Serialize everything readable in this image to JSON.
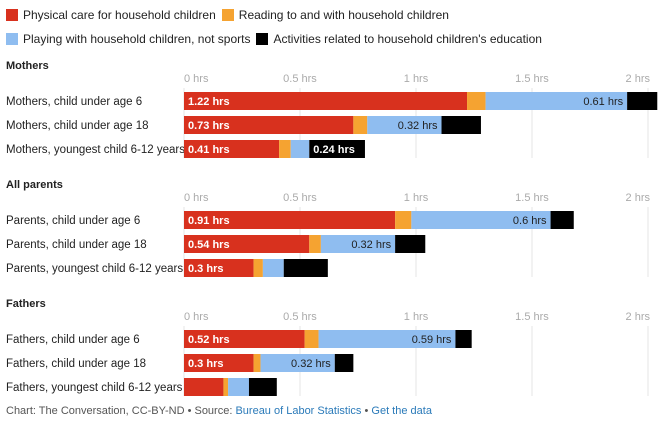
{
  "chart_data": {
    "type": "bar",
    "stacked": true,
    "orientation": "horizontal",
    "xlim": [
      0,
      2
    ],
    "x_ticks": [
      "0 hrs",
      "0.5 hrs",
      "1 hrs",
      "1.5 hrs",
      "2 hrs"
    ],
    "legend": [
      {
        "name": "Physical care for household children",
        "color": "#d8311e"
      },
      {
        "name": "Reading to and with household children",
        "color": "#f5a331"
      },
      {
        "name": "Playing with household children, not sports",
        "color": "#8fbdf0"
      },
      {
        "name": "Activities related to household children's education",
        "color": "#000000"
      }
    ],
    "groups": [
      {
        "title": "Mothers",
        "rows": [
          {
            "label": "Mothers, child under age 6",
            "values": [
              1.22,
              0.08,
              0.61,
              0.13
            ],
            "labels": [
              "1.22 hrs",
              "",
              "0.61 hrs",
              ""
            ]
          },
          {
            "label": "Mothers, child under age 18",
            "values": [
              0.73,
              0.06,
              0.32,
              0.17
            ],
            "labels": [
              "0.73 hrs",
              "",
              "0.32 hrs",
              ""
            ]
          },
          {
            "label": "Mothers, youngest child 6-12 years",
            "values": [
              0.41,
              0.05,
              0.08,
              0.24
            ],
            "labels": [
              "0.41 hrs",
              "",
              "",
              "0.24 hrs"
            ]
          }
        ]
      },
      {
        "title": "All parents",
        "rows": [
          {
            "label": "Parents, child under age 6",
            "values": [
              0.91,
              0.07,
              0.6,
              0.1
            ],
            "labels": [
              "0.91 hrs",
              "",
              "0.6 hrs",
              ""
            ]
          },
          {
            "label": "Parents, child under age 18",
            "values": [
              0.54,
              0.05,
              0.32,
              0.13
            ],
            "labels": [
              "0.54 hrs",
              "",
              "0.32 hrs",
              ""
            ]
          },
          {
            "label": "Parents, youngest child 6-12 years",
            "values": [
              0.3,
              0.04,
              0.09,
              0.19
            ],
            "labels": [
              "0.3 hrs",
              "",
              "",
              ""
            ]
          }
        ]
      },
      {
        "title": "Fathers",
        "rows": [
          {
            "label": "Fathers, child under age 6",
            "values": [
              0.52,
              0.06,
              0.59,
              0.07
            ],
            "labels": [
              "0.52 hrs",
              "",
              "0.59 hrs",
              ""
            ]
          },
          {
            "label": "Fathers, child under age 18",
            "values": [
              0.3,
              0.03,
              0.32,
              0.08
            ],
            "labels": [
              "0.3 hrs",
              "",
              "0.32 hrs",
              ""
            ]
          },
          {
            "label": "Fathers, youngest child 6-12 years",
            "values": [
              0.17,
              0.02,
              0.09,
              0.12
            ],
            "labels": [
              "",
              "",
              "",
              ""
            ]
          }
        ]
      }
    ]
  },
  "footer": {
    "prefix": "Chart: The Conversation, CC-BY-ND • Source: ",
    "source_link": "Bureau of Labor Statistics",
    "separator": " • ",
    "data_link": "Get the data"
  }
}
